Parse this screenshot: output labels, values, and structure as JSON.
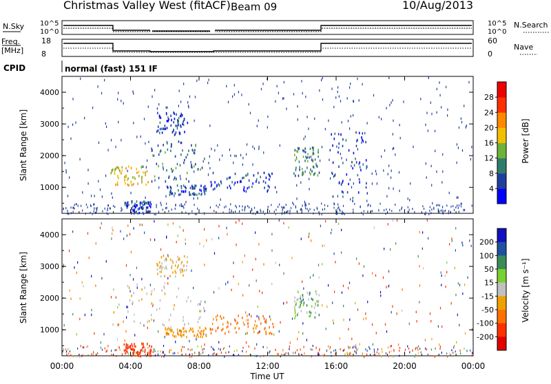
{
  "header": {
    "station": "Christmas Valley West (fitACF)",
    "beam": "Beam 09",
    "date": "10/Aug/2013"
  },
  "noise_panel": {
    "left_label": "N.Sky",
    "left_ticks": [
      "10^5",
      "10^0"
    ],
    "right_ticks": [
      "10^5",
      "10^0"
    ],
    "right_label": "N.Search"
  },
  "freq_panel": {
    "left_label_line1": "Freq.",
    "left_label_line2": "[MHz]",
    "left_ticks": [
      "18",
      "8"
    ],
    "right_ticks": [
      "60",
      "0"
    ],
    "right_label": "Nave"
  },
  "cpid": {
    "label": "CPID",
    "value": "normal (fast) 151 IF"
  },
  "colors": {
    "ground_scatter": "#c0c0c0",
    "power_scale": [
      "#0000ff",
      "#1f3f9f",
      "#2e7d6a",
      "#6fb23a",
      "#f0c000",
      "#ff8a00",
      "#ff3000",
      "#ee0000"
    ],
    "velocity_scale": [
      "#1010c0",
      "#2050a0",
      "#3a8a5a",
      "#7ad030",
      "#c0c0c0",
      "#f0a000",
      "#ff7000",
      "#ff3000",
      "#e00000"
    ]
  },
  "chart_data": [
    {
      "type": "heatmap",
      "title": "",
      "xlabel": "",
      "ylabel": "Slant Range [km]",
      "x_ticks": [
        "00:00",
        "04:00",
        "08:00",
        "12:00",
        "16:00",
        "20:00",
        "00:00"
      ],
      "y_ticks": [
        "1000",
        "2000",
        "3000",
        "4000"
      ],
      "xlim": [
        0,
        24
      ],
      "ylim": [
        180,
        4500
      ],
      "colorbar": {
        "label": "Power [dB]",
        "ticks": [
          "4",
          "8",
          "12",
          "16",
          "20",
          "24",
          "28"
        ]
      },
      "echo_regions": [
        {
          "t_start": 2.8,
          "t_end": 5.0,
          "range_start": 1100,
          "range_end": 1700,
          "value": 18
        },
        {
          "t_start": 5.2,
          "t_end": 8.3,
          "range_start": 1200,
          "range_end": 2500,
          "value": 9
        },
        {
          "t_start": 6.0,
          "t_end": 8.4,
          "range_start": 800,
          "range_end": 1100,
          "value": 7
        },
        {
          "t_start": 8.6,
          "t_end": 12.5,
          "range_start": 900,
          "range_end": 1500,
          "value": 5
        },
        {
          "t_start": 5.5,
          "t_end": 7.3,
          "range_start": 2700,
          "range_end": 3400,
          "value": 5
        },
        {
          "t_start": 13.5,
          "t_end": 15.0,
          "range_start": 1400,
          "range_end": 2300,
          "value": 10
        },
        {
          "t_start": 15.6,
          "t_end": 17.8,
          "range_start": 600,
          "range_end": 2800,
          "value": 4
        },
        {
          "t_start": 3.6,
          "t_end": 5.2,
          "range_start": 200,
          "range_end": 600,
          "value": 6
        }
      ]
    },
    {
      "type": "heatmap",
      "title": "",
      "xlabel": "Time UT",
      "ylabel": "Slant Range [km]",
      "x_ticks": [
        "00:00",
        "04:00",
        "08:00",
        "12:00",
        "16:00",
        "20:00",
        "00:00"
      ],
      "y_ticks": [
        "1000",
        "2000",
        "3000",
        "4000"
      ],
      "xlim": [
        0,
        24
      ],
      "ylim": [
        180,
        4500
      ],
      "colorbar": {
        "label": "Velocity [m s⁻¹]",
        "ticks": [
          "200",
          "100",
          "50",
          "15",
          "-15",
          "-50",
          "-100",
          "-200"
        ]
      },
      "echo_regions": [
        {
          "t_start": 2.8,
          "t_end": 8.3,
          "range_start": 1100,
          "range_end": 2500,
          "value": "ground"
        },
        {
          "t_start": 6.0,
          "t_end": 8.4,
          "range_start": 800,
          "range_end": 1100,
          "value": -40
        },
        {
          "t_start": 8.6,
          "t_end": 12.5,
          "range_start": 900,
          "range_end": 1500,
          "value": -60
        },
        {
          "t_start": 5.5,
          "t_end": 7.3,
          "range_start": 2700,
          "range_end": 3400,
          "value": -20
        },
        {
          "t_start": 13.5,
          "t_end": 15.0,
          "range_start": 1400,
          "range_end": 2300,
          "value": 20
        },
        {
          "t_start": 3.6,
          "t_end": 5.2,
          "range_start": 200,
          "range_end": 600,
          "value": -150
        }
      ]
    }
  ]
}
